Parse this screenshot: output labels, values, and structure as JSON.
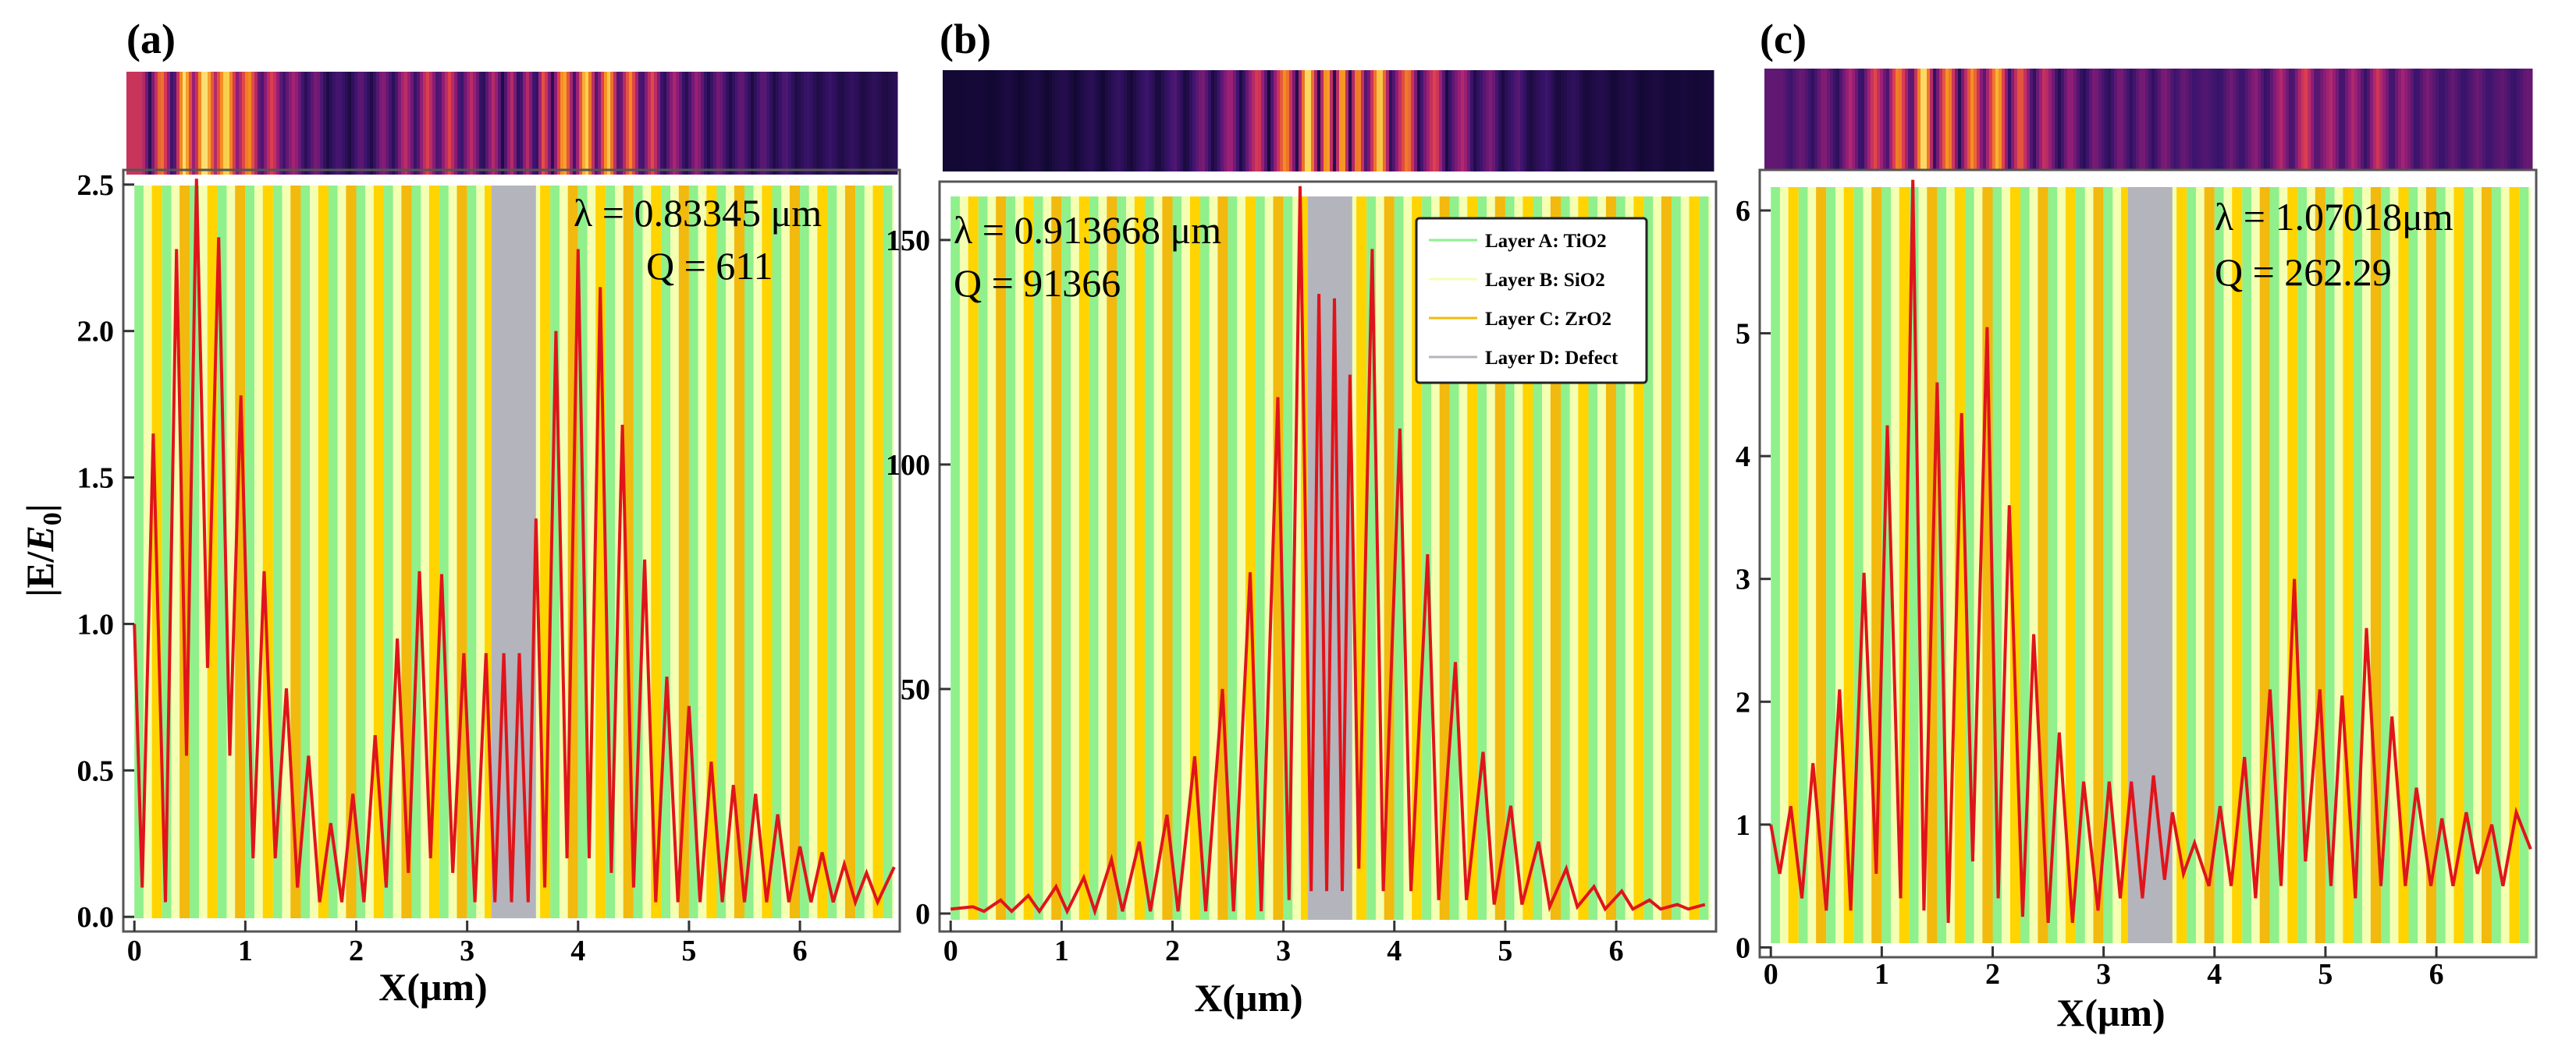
{
  "figure": {
    "ylabel": "|E/E0|",
    "ylabel_main": "|E/",
    "ylabel_italic": "E",
    "ylabel_sub": "0",
    "ylabel_end": "|",
    "xlabel": "X(μm)"
  },
  "legend": [
    {
      "label": "Layer A: TiO2",
      "color": "#8ff08c"
    },
    {
      "label": "Layer B: SiO2",
      "color": "#f4ffb2"
    },
    {
      "label": "Layer C: ZrO2",
      "color": "#f2b90e"
    },
    {
      "label": "Layer D: Defect",
      "color": "#b4b4bc"
    }
  ],
  "colors": {
    "layer_a": "#8ff08c",
    "layer_b": "#f4ffb2",
    "layer_c": "#f2b90e",
    "layer_c_alt": "#ffd400",
    "defect": "#b4b4bc",
    "curve": "#e0141a",
    "heat_dark": "#0b0626",
    "heat_hot": "#fff08c"
  },
  "chart_data": [
    {
      "panel": "(a)",
      "type": "line",
      "title": "",
      "xlabel": "X(μm)",
      "ylabel": "|E/E0|",
      "xlim": [
        -0.1,
        6.9
      ],
      "ylim": [
        -0.05,
        2.55
      ],
      "yticks": [
        0.0,
        0.5,
        1.0,
        1.5,
        2.0,
        2.5
      ],
      "ytick_labels": [
        "0.0",
        "0.5",
        "1.0",
        "1.5",
        "2.0",
        "2.5"
      ],
      "xticks": [
        0,
        1,
        2,
        3,
        4,
        5,
        6
      ],
      "xtick_labels": [
        "0",
        "1",
        "2",
        "3",
        "4",
        "5",
        "6"
      ],
      "wavelength": "λ = 0.83345 μm",
      "q_factor": "Q = 611",
      "defect_range": [
        3.22,
        3.62
      ],
      "x": [
        0.0,
        0.07,
        0.17,
        0.28,
        0.38,
        0.47,
        0.56,
        0.66,
        0.76,
        0.86,
        0.96,
        1.07,
        1.17,
        1.27,
        1.37,
        1.47,
        1.57,
        1.67,
        1.77,
        1.87,
        1.97,
        2.07,
        2.17,
        2.27,
        2.37,
        2.47,
        2.57,
        2.67,
        2.77,
        2.87,
        2.97,
        3.07,
        3.17,
        3.25,
        3.33,
        3.4,
        3.47,
        3.55,
        3.62,
        3.7,
        3.8,
        3.9,
        4.0,
        4.1,
        4.2,
        4.3,
        4.4,
        4.5,
        4.6,
        4.7,
        4.8,
        4.9,
        5.0,
        5.1,
        5.2,
        5.3,
        5.4,
        5.5,
        5.6,
        5.7,
        5.8,
        5.9,
        6.0,
        6.1,
        6.2,
        6.3,
        6.4,
        6.5,
        6.6,
        6.7,
        6.85
      ],
      "y": [
        1.0,
        0.1,
        1.65,
        0.05,
        2.28,
        0.55,
        2.52,
        0.85,
        2.32,
        0.55,
        1.78,
        0.2,
        1.18,
        0.2,
        0.78,
        0.1,
        0.55,
        0.05,
        0.32,
        0.05,
        0.42,
        0.05,
        0.62,
        0.1,
        0.95,
        0.15,
        1.18,
        0.2,
        1.17,
        0.15,
        0.9,
        0.05,
        0.9,
        0.05,
        0.9,
        0.05,
        0.9,
        0.05,
        1.36,
        0.1,
        2.0,
        0.2,
        2.28,
        0.2,
        2.15,
        0.15,
        1.68,
        0.1,
        1.22,
        0.05,
        0.82,
        0.05,
        0.72,
        0.05,
        0.53,
        0.05,
        0.45,
        0.05,
        0.42,
        0.05,
        0.35,
        0.05,
        0.24,
        0.05,
        0.22,
        0.05,
        0.18,
        0.05,
        0.15,
        0.05,
        0.17
      ]
    },
    {
      "panel": "(b)",
      "type": "line",
      "title": "",
      "xlabel": "X(μm)",
      "ylabel": "",
      "xlim": [
        -0.1,
        6.9
      ],
      "ylim": [
        -4,
        163
      ],
      "yticks": [
        0,
        50,
        100,
        150
      ],
      "ytick_labels": [
        "0",
        "50",
        "100",
        "150"
      ],
      "xticks": [
        0,
        1,
        2,
        3,
        4,
        5,
        6
      ],
      "xtick_labels": [
        "0",
        "1",
        "2",
        "3",
        "4",
        "5",
        "6"
      ],
      "wavelength": "λ = 0.913668 μm",
      "q_factor": "Q = 91366",
      "defect_range": [
        3.22,
        3.62
      ],
      "x": [
        0.0,
        0.2,
        0.3,
        0.45,
        0.55,
        0.7,
        0.8,
        0.95,
        1.05,
        1.2,
        1.3,
        1.45,
        1.55,
        1.7,
        1.8,
        1.95,
        2.05,
        2.2,
        2.3,
        2.45,
        2.55,
        2.7,
        2.8,
        2.95,
        3.05,
        3.15,
        3.25,
        3.32,
        3.39,
        3.46,
        3.53,
        3.6,
        3.68,
        3.8,
        3.9,
        4.05,
        4.15,
        4.3,
        4.4,
        4.55,
        4.65,
        4.8,
        4.9,
        5.05,
        5.15,
        5.3,
        5.4,
        5.55,
        5.65,
        5.8,
        5.9,
        6.05,
        6.15,
        6.3,
        6.4,
        6.55,
        6.65,
        6.8
      ],
      "y": [
        1,
        1.5,
        0.5,
        3,
        0.5,
        4,
        0.5,
        6,
        0.5,
        8,
        0.5,
        12,
        0.5,
        16,
        0.5,
        22,
        0.5,
        35,
        0.5,
        50,
        0.5,
        76,
        0.5,
        115,
        3,
        162,
        5,
        138,
        5,
        137,
        5,
        120,
        10,
        148,
        5,
        108,
        5,
        80,
        3,
        56,
        3,
        36,
        2,
        24,
        2,
        16,
        1.5,
        10,
        1.5,
        6,
        1,
        5,
        1,
        3,
        1,
        2,
        1,
        2
      ]
    },
    {
      "panel": "(c)",
      "type": "line",
      "title": "",
      "xlabel": "X(μm)",
      "ylabel": "",
      "xlim": [
        -0.1,
        6.9
      ],
      "ylim": [
        -0.08,
        6.33
      ],
      "yticks": [
        0,
        1,
        2,
        3,
        4,
        5,
        6
      ],
      "ytick_labels": [
        "0",
        "1",
        "2",
        "3",
        "4",
        "5",
        "6"
      ],
      "xticks": [
        0,
        1,
        2,
        3,
        4,
        5,
        6
      ],
      "xtick_labels": [
        "0",
        "1",
        "2",
        "3",
        "4",
        "5",
        "6"
      ],
      "wavelength": "λ = 1.07018μm",
      "q_factor": "Q = 262.29",
      "defect_range": [
        3.22,
        3.62
      ],
      "x": [
        0.0,
        0.08,
        0.18,
        0.28,
        0.38,
        0.5,
        0.62,
        0.72,
        0.84,
        0.95,
        1.05,
        1.17,
        1.28,
        1.38,
        1.5,
        1.6,
        1.72,
        1.82,
        1.95,
        2.05,
        2.15,
        2.27,
        2.37,
        2.5,
        2.6,
        2.72,
        2.82,
        2.95,
        3.05,
        3.15,
        3.25,
        3.35,
        3.45,
        3.55,
        3.62,
        3.72,
        3.82,
        3.95,
        4.05,
        4.15,
        4.27,
        4.37,
        4.5,
        4.6,
        4.72,
        4.82,
        4.95,
        5.05,
        5.15,
        5.27,
        5.37,
        5.5,
        5.6,
        5.72,
        5.82,
        5.95,
        6.05,
        6.15,
        6.27,
        6.37,
        6.5,
        6.6,
        6.72,
        6.85
      ],
      "y": [
        1.0,
        0.6,
        1.15,
        0.4,
        1.5,
        0.3,
        2.1,
        0.3,
        3.05,
        0.6,
        4.25,
        0.4,
        6.25,
        0.3,
        4.6,
        0.2,
        4.35,
        0.7,
        5.05,
        0.4,
        3.6,
        0.25,
        2.55,
        0.2,
        1.75,
        0.2,
        1.35,
        0.3,
        1.35,
        0.4,
        1.35,
        0.4,
        1.4,
        0.55,
        1.1,
        0.6,
        0.85,
        0.5,
        1.15,
        0.5,
        1.55,
        0.4,
        2.1,
        0.5,
        3.0,
        0.7,
        2.1,
        0.5,
        2.05,
        0.4,
        2.6,
        0.5,
        1.88,
        0.5,
        1.3,
        0.5,
        1.05,
        0.5,
        1.1,
        0.6,
        1.0,
        0.5,
        1.1,
        0.8
      ]
    }
  ],
  "panels": [
    {
      "label": "(a)"
    },
    {
      "label": "(b)"
    },
    {
      "label": "(c)"
    }
  ]
}
